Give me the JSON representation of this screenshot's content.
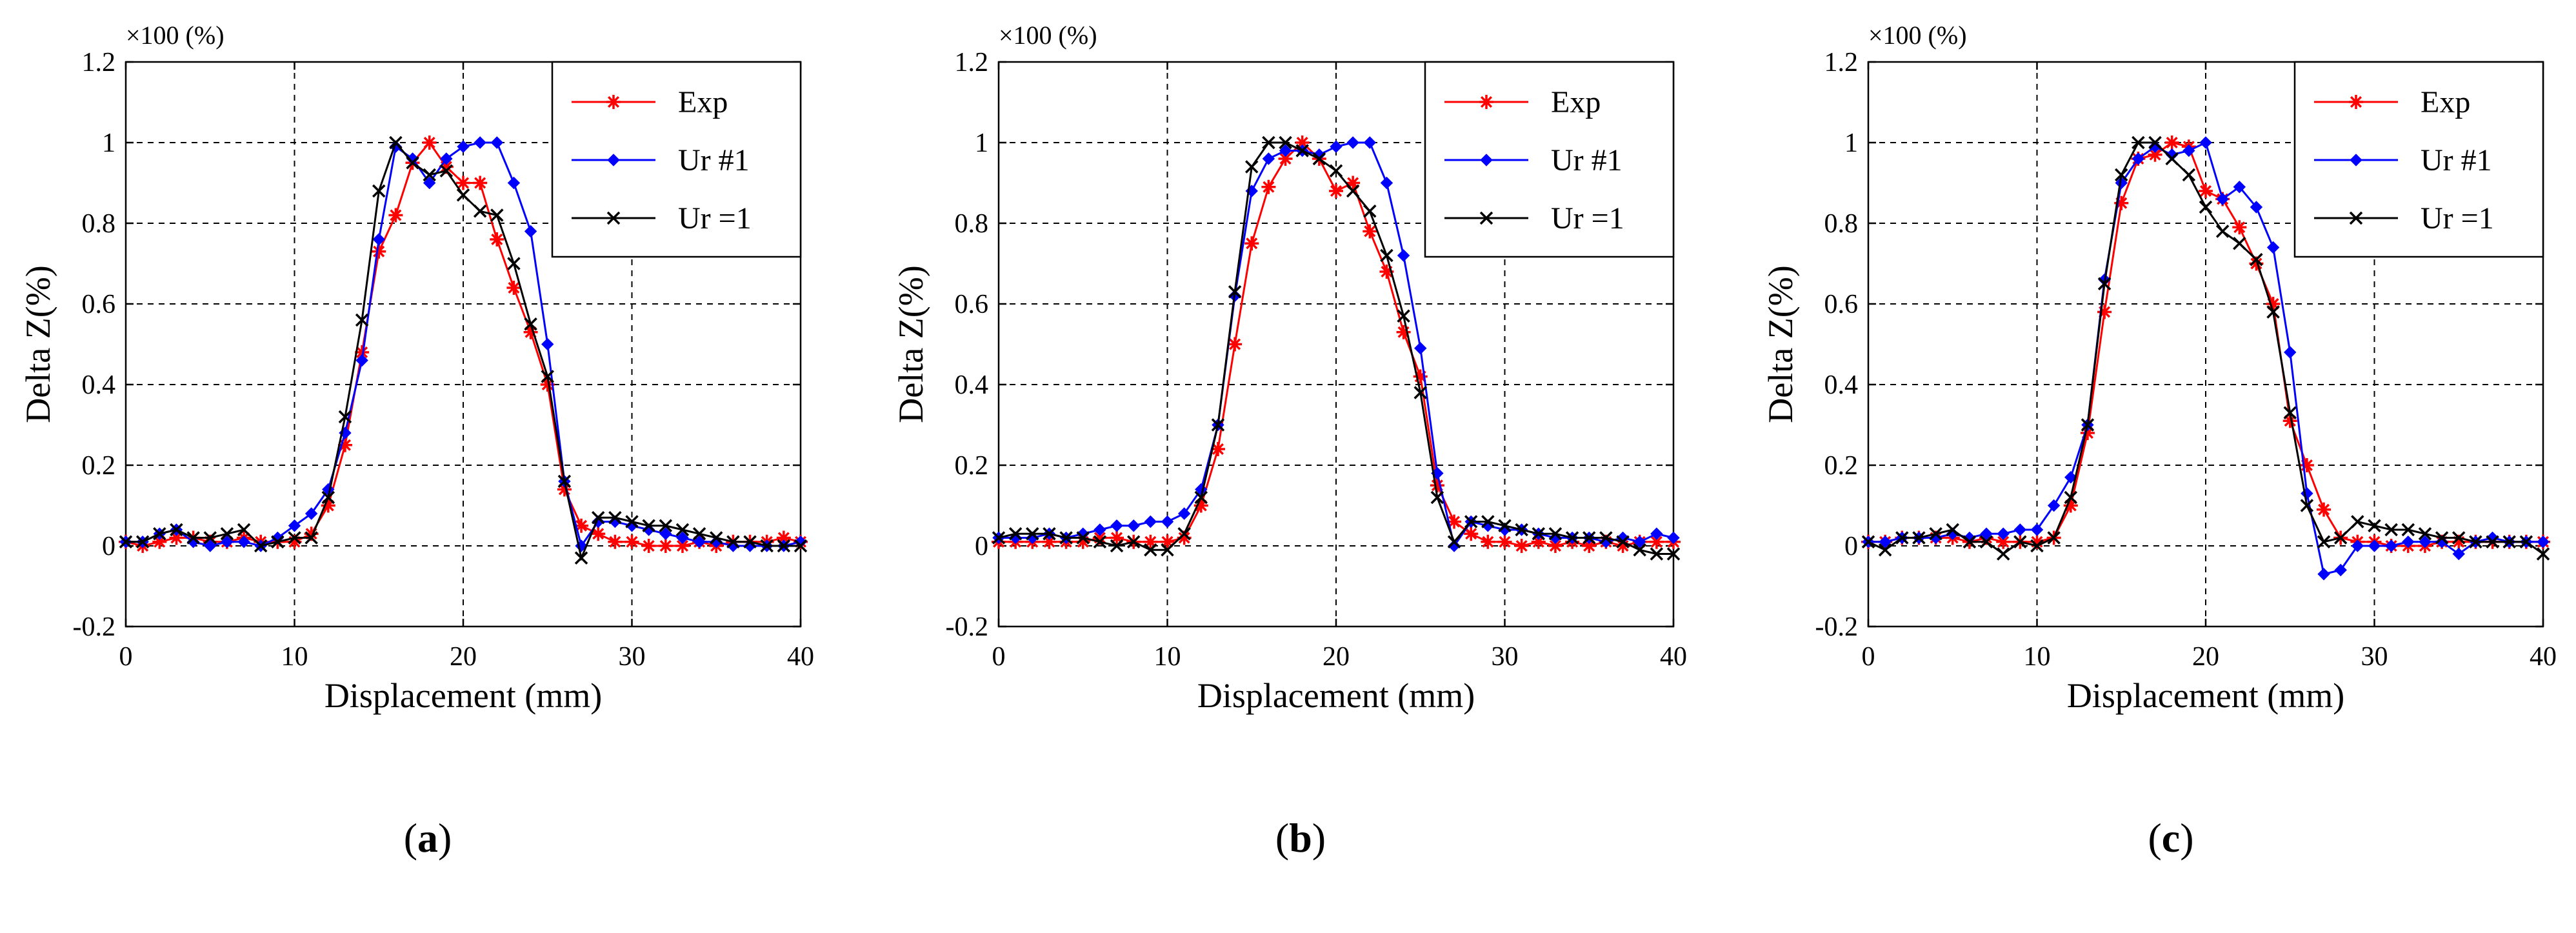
{
  "figure": {
    "panels": [
      {
        "label": "a"
      },
      {
        "label": "b"
      },
      {
        "label": "c"
      }
    ]
  },
  "chart_data": [
    {
      "type": "line",
      "panel": "a",
      "title": "",
      "xlabel": "Displacement (mm)",
      "ylabel": "Delta Z(%)",
      "scale_note": "×100 (%)",
      "xlim": [
        0,
        40
      ],
      "ylim": [
        -0.2,
        1.2
      ],
      "xticks": [
        0,
        10,
        20,
        30,
        40
      ],
      "yticks": [
        -0.2,
        0,
        0.2,
        0.4,
        0.6,
        0.8,
        1,
        1.2
      ],
      "ytick_labels": [
        "-0.2",
        "0",
        "0.2",
        "0.4",
        "0.6",
        "0.8",
        "1",
        "1.2"
      ],
      "grid": true,
      "legend_position": "top-right",
      "series": [
        {
          "name": "Exp",
          "color": "#ff0000",
          "marker": "asterisk",
          "x": [
            0,
            1,
            2,
            3,
            4,
            5,
            6,
            7,
            8,
            9,
            10,
            11,
            12,
            13,
            14,
            15,
            16,
            17,
            18,
            19,
            20,
            21,
            22,
            23,
            24,
            25,
            26,
            27,
            28,
            29,
            30,
            31,
            32,
            33,
            34,
            35,
            36,
            37,
            38,
            39,
            40
          ],
          "y": [
            0.01,
            0.0,
            0.01,
            0.02,
            0.02,
            0.01,
            0.01,
            0.02,
            0.01,
            0.01,
            0.01,
            0.03,
            0.1,
            0.25,
            0.48,
            0.73,
            0.82,
            0.95,
            1.0,
            0.94,
            0.9,
            0.9,
            0.76,
            0.64,
            0.53,
            0.4,
            0.14,
            0.05,
            0.03,
            0.01,
            0.01,
            0.0,
            0.0,
            0.0,
            0.01,
            0.0,
            0.01,
            0.01,
            0.01,
            0.02,
            0.01
          ]
        },
        {
          "name": "Ur #1",
          "color": "#0000ff",
          "marker": "diamond",
          "x": [
            0,
            1,
            2,
            3,
            4,
            5,
            6,
            7,
            8,
            9,
            10,
            11,
            12,
            13,
            14,
            15,
            16,
            17,
            18,
            19,
            20,
            21,
            22,
            23,
            24,
            25,
            26,
            27,
            28,
            29,
            30,
            31,
            32,
            33,
            34,
            35,
            36,
            37,
            38,
            39,
            40
          ],
          "y": [
            0.01,
            0.01,
            0.03,
            0.04,
            0.01,
            0.0,
            0.01,
            0.01,
            0.0,
            0.02,
            0.05,
            0.08,
            0.14,
            0.28,
            0.46,
            0.76,
            0.99,
            0.96,
            0.9,
            0.96,
            0.99,
            1.0,
            1.0,
            0.9,
            0.78,
            0.5,
            0.16,
            0.0,
            0.06,
            0.06,
            0.05,
            0.04,
            0.03,
            0.02,
            0.01,
            0.01,
            0.0,
            0.0,
            0.0,
            0.0,
            0.01
          ]
        },
        {
          "name": "Ur =1",
          "color": "#000000",
          "marker": "cross",
          "x": [
            0,
            1,
            2,
            3,
            4,
            5,
            6,
            7,
            8,
            9,
            10,
            11,
            12,
            13,
            14,
            15,
            16,
            17,
            18,
            19,
            20,
            21,
            22,
            23,
            24,
            25,
            26,
            27,
            28,
            29,
            30,
            31,
            32,
            33,
            34,
            35,
            36,
            37,
            38,
            39,
            40
          ],
          "y": [
            0.01,
            0.01,
            0.03,
            0.04,
            0.02,
            0.02,
            0.03,
            0.04,
            0.0,
            0.01,
            0.02,
            0.02,
            0.12,
            0.32,
            0.56,
            0.88,
            1.0,
            0.95,
            0.92,
            0.93,
            0.87,
            0.83,
            0.82,
            0.7,
            0.55,
            0.42,
            0.16,
            -0.03,
            0.07,
            0.07,
            0.06,
            0.05,
            0.05,
            0.04,
            0.03,
            0.02,
            0.01,
            0.01,
            0.0,
            0.0,
            0.0
          ]
        }
      ]
    },
    {
      "type": "line",
      "panel": "b",
      "title": "",
      "xlabel": "Displacement (mm)",
      "ylabel": "Delta Z(%)",
      "scale_note": "×100 (%)",
      "xlim": [
        0,
        40
      ],
      "ylim": [
        -0.2,
        1.2
      ],
      "xticks": [
        0,
        10,
        20,
        30,
        40
      ],
      "yticks": [
        -0.2,
        0,
        0.2,
        0.4,
        0.6,
        0.8,
        1,
        1.2
      ],
      "ytick_labels": [
        "-0.2",
        "0",
        "0.2",
        "0.4",
        "0.6",
        "0.8",
        "1",
        "1.2"
      ],
      "grid": true,
      "legend_position": "top-right",
      "series": [
        {
          "name": "Exp",
          "color": "#ff0000",
          "marker": "asterisk",
          "x": [
            0,
            1,
            2,
            3,
            4,
            5,
            6,
            7,
            8,
            9,
            10,
            11,
            12,
            13,
            14,
            15,
            16,
            17,
            18,
            19,
            20,
            21,
            22,
            23,
            24,
            25,
            26,
            27,
            28,
            29,
            30,
            31,
            32,
            33,
            34,
            35,
            36,
            37,
            38,
            39,
            40
          ],
          "y": [
            0.01,
            0.01,
            0.01,
            0.01,
            0.01,
            0.01,
            0.02,
            0.02,
            0.01,
            0.01,
            0.01,
            0.02,
            0.1,
            0.24,
            0.5,
            0.75,
            0.89,
            0.96,
            1.0,
            0.96,
            0.88,
            0.9,
            0.78,
            0.68,
            0.53,
            0.42,
            0.15,
            0.06,
            0.03,
            0.01,
            0.01,
            0.0,
            0.01,
            0.0,
            0.01,
            0.0,
            0.01,
            0.0,
            0.01,
            0.01,
            0.01
          ]
        },
        {
          "name": "Ur #1",
          "color": "#0000ff",
          "marker": "diamond",
          "x": [
            0,
            1,
            2,
            3,
            4,
            5,
            6,
            7,
            8,
            9,
            10,
            11,
            12,
            13,
            14,
            15,
            16,
            17,
            18,
            19,
            20,
            21,
            22,
            23,
            24,
            25,
            26,
            27,
            28,
            29,
            30,
            31,
            32,
            33,
            34,
            35,
            36,
            37,
            38,
            39,
            40
          ],
          "y": [
            0.02,
            0.02,
            0.02,
            0.03,
            0.02,
            0.03,
            0.04,
            0.05,
            0.05,
            0.06,
            0.06,
            0.08,
            0.14,
            0.3,
            0.62,
            0.88,
            0.96,
            0.98,
            0.98,
            0.97,
            0.99,
            1.0,
            1.0,
            0.9,
            0.72,
            0.49,
            0.18,
            0.0,
            0.06,
            0.05,
            0.04,
            0.04,
            0.03,
            0.02,
            0.02,
            0.02,
            0.01,
            0.02,
            0.01,
            0.03,
            0.02
          ]
        },
        {
          "name": "Ur =1",
          "color": "#000000",
          "marker": "cross",
          "x": [
            0,
            1,
            2,
            3,
            4,
            5,
            6,
            7,
            8,
            9,
            10,
            11,
            12,
            13,
            14,
            15,
            16,
            17,
            18,
            19,
            20,
            21,
            22,
            23,
            24,
            25,
            26,
            27,
            28,
            29,
            30,
            31,
            32,
            33,
            34,
            35,
            36,
            37,
            38,
            39,
            40
          ],
          "y": [
            0.02,
            0.03,
            0.03,
            0.03,
            0.02,
            0.02,
            0.01,
            0.0,
            0.01,
            -0.01,
            -0.01,
            0.03,
            0.12,
            0.3,
            0.63,
            0.94,
            1.0,
            1.0,
            0.98,
            0.96,
            0.93,
            0.88,
            0.83,
            0.72,
            0.57,
            0.38,
            0.12,
            0.01,
            0.06,
            0.06,
            0.05,
            0.04,
            0.03,
            0.03,
            0.02,
            0.02,
            0.02,
            0.01,
            -0.01,
            -0.02,
            -0.02
          ]
        }
      ]
    },
    {
      "type": "line",
      "panel": "c",
      "title": "",
      "xlabel": "Displacement (mm)",
      "ylabel": "Delta Z(%)",
      "scale_note": "×100 (%)",
      "xlim": [
        0,
        40
      ],
      "ylim": [
        -0.2,
        1.2
      ],
      "xticks": [
        0,
        10,
        20,
        30,
        40
      ],
      "yticks": [
        -0.2,
        0,
        0.2,
        0.4,
        0.6,
        0.8,
        1,
        1.2
      ],
      "ytick_labels": [
        "-0.2",
        "0",
        "0.2",
        "0.4",
        "0.6",
        "0.8",
        "1",
        "1.2"
      ],
      "grid": true,
      "legend_position": "top-right",
      "series": [
        {
          "name": "Exp",
          "color": "#ff0000",
          "marker": "asterisk",
          "x": [
            0,
            1,
            2,
            3,
            4,
            5,
            6,
            7,
            8,
            9,
            10,
            11,
            12,
            13,
            14,
            15,
            16,
            17,
            18,
            19,
            20,
            21,
            22,
            23,
            24,
            25,
            26,
            27,
            28,
            29,
            30,
            31,
            32,
            33,
            34,
            35,
            36,
            37,
            38,
            39,
            40
          ],
          "y": [
            0.01,
            0.01,
            0.02,
            0.02,
            0.02,
            0.02,
            0.01,
            0.02,
            0.01,
            0.01,
            0.01,
            0.02,
            0.1,
            0.28,
            0.58,
            0.85,
            0.96,
            0.97,
            1.0,
            0.99,
            0.88,
            0.86,
            0.79,
            0.7,
            0.6,
            0.31,
            0.2,
            0.09,
            0.02,
            0.01,
            0.01,
            0.0,
            0.0,
            0.0,
            0.01,
            0.01,
            0.01,
            0.01,
            0.01,
            0.01,
            0.01
          ]
        },
        {
          "name": "Ur #1",
          "color": "#0000ff",
          "marker": "diamond",
          "x": [
            0,
            1,
            2,
            3,
            4,
            5,
            6,
            7,
            8,
            9,
            10,
            11,
            12,
            13,
            14,
            15,
            16,
            17,
            18,
            19,
            20,
            21,
            22,
            23,
            24,
            25,
            26,
            27,
            28,
            29,
            30,
            31,
            32,
            33,
            34,
            35,
            36,
            37,
            38,
            39,
            40
          ],
          "y": [
            0.01,
            0.01,
            0.02,
            0.02,
            0.02,
            0.03,
            0.02,
            0.03,
            0.03,
            0.04,
            0.04,
            0.1,
            0.17,
            0.3,
            0.66,
            0.9,
            0.96,
            0.99,
            0.97,
            0.98,
            1.0,
            0.86,
            0.89,
            0.84,
            0.74,
            0.48,
            0.13,
            -0.07,
            -0.06,
            0.0,
            0.0,
            0.0,
            0.01,
            0.01,
            0.01,
            -0.02,
            0.01,
            0.02,
            0.01,
            0.01,
            0.01
          ]
        },
        {
          "name": "Ur =1",
          "color": "#000000",
          "marker": "cross",
          "x": [
            0,
            1,
            2,
            3,
            4,
            5,
            6,
            7,
            8,
            9,
            10,
            11,
            12,
            13,
            14,
            15,
            16,
            17,
            18,
            19,
            20,
            21,
            22,
            23,
            24,
            25,
            26,
            27,
            28,
            29,
            30,
            31,
            32,
            33,
            34,
            35,
            36,
            37,
            38,
            39,
            40
          ],
          "y": [
            0.01,
            -0.01,
            0.02,
            0.02,
            0.03,
            0.04,
            0.01,
            0.01,
            -0.02,
            0.01,
            0.0,
            0.02,
            0.12,
            0.3,
            0.65,
            0.92,
            1.0,
            1.0,
            0.96,
            0.92,
            0.84,
            0.78,
            0.75,
            0.71,
            0.58,
            0.33,
            0.1,
            0.01,
            0.02,
            0.06,
            0.05,
            0.04,
            0.04,
            0.03,
            0.02,
            0.02,
            0.01,
            0.01,
            0.01,
            0.01,
            -0.02
          ]
        }
      ]
    }
  ]
}
